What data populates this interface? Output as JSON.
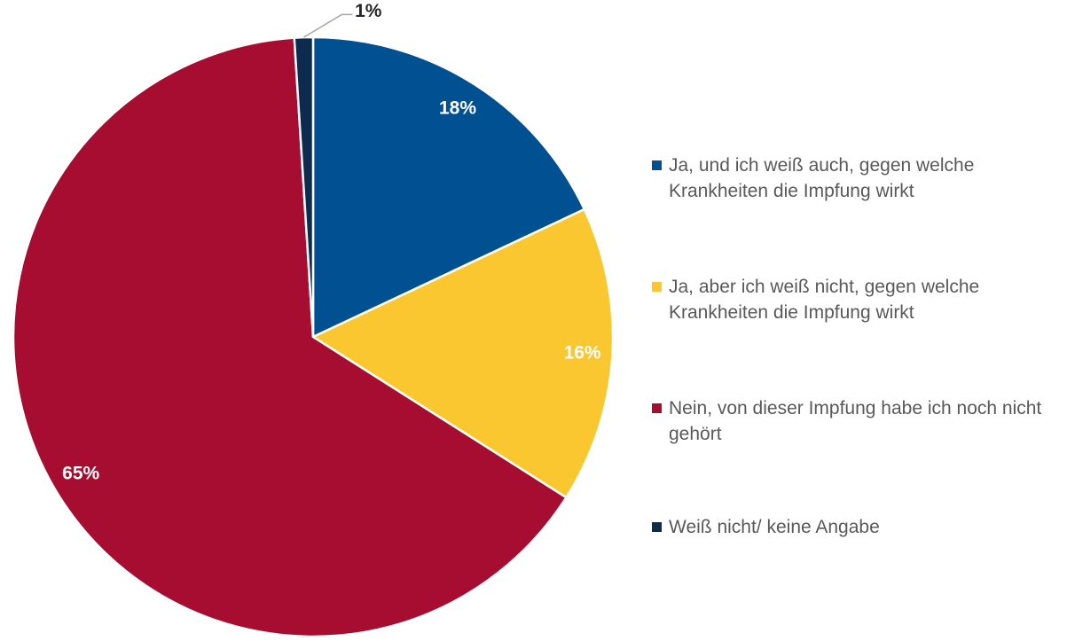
{
  "chart_data": {
    "type": "pie",
    "categories": [
      "Ja, und ich weiß auch, gegen welche Krankheiten die Impfung wirkt",
      "Ja, aber ich weiß nicht, gegen welche Krankheiten die Impfung wirkt",
      "Nein, von dieser Impfung habe ich noch nicht gehört",
      "Weiß nicht/ keine Angabe"
    ],
    "values": [
      18,
      16,
      65,
      1
    ],
    "value_labels": [
      "18%",
      "16%",
      "65%",
      "1%"
    ],
    "colors": [
      "#005092",
      "#fbc730",
      "#a70d31",
      "#0d2a4f"
    ],
    "legend": "right"
  }
}
